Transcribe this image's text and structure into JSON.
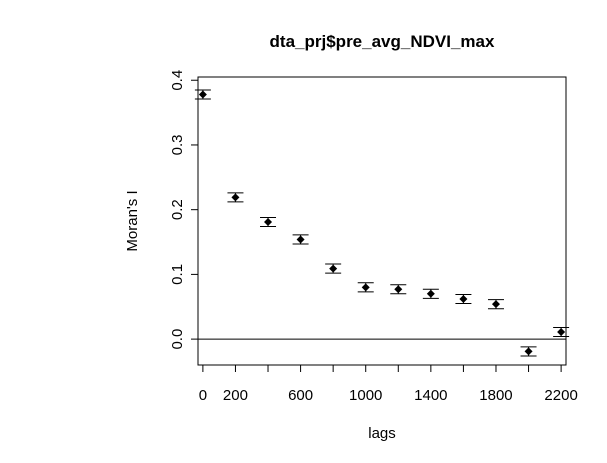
{
  "chart_data": {
    "type": "scatter",
    "title": "dta_prj$pre_avg_NDVI_max",
    "xlabel": "lags",
    "ylabel": "Moran's  I",
    "xlim": [
      -30,
      2230
    ],
    "ylim": [
      -0.04,
      0.405
    ],
    "x_ticks": [
      0,
      200,
      600,
      1000,
      1400,
      1800,
      2200
    ],
    "x_tick_positions": [
      0,
      200,
      400,
      600,
      800,
      1000,
      1200,
      1400,
      1600,
      1800,
      2000,
      2200
    ],
    "y_ticks": [
      0.0,
      0.1,
      0.2,
      0.3,
      0.4
    ],
    "y_tick_labels": [
      "0.0",
      "0.1",
      "0.2",
      "0.3",
      "0.4"
    ],
    "reference_line_y": 0,
    "series": [
      {
        "x": [
          0,
          200,
          400,
          600,
          800,
          1000,
          1200,
          1400,
          1600,
          1800,
          2000,
          2200
        ],
        "y": [
          0.378,
          0.219,
          0.181,
          0.154,
          0.109,
          0.08,
          0.077,
          0.07,
          0.062,
          0.054,
          -0.019,
          0.011
        ],
        "err_low": [
          0.371,
          0.212,
          0.174,
          0.147,
          0.102,
          0.073,
          0.07,
          0.063,
          0.055,
          0.047,
          -0.026,
          0.004
        ],
        "err_high": [
          0.385,
          0.226,
          0.188,
          0.161,
          0.116,
          0.087,
          0.084,
          0.077,
          0.069,
          0.061,
          -0.012,
          0.018
        ]
      }
    ],
    "grid": false,
    "legend": "none"
  }
}
